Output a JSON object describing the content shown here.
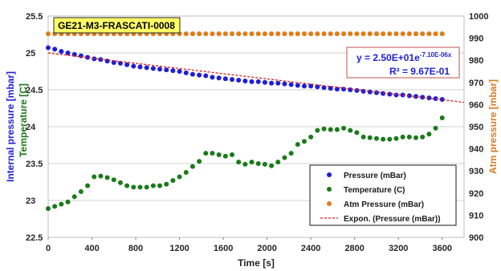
{
  "chart_data": {
    "type": "scatter",
    "title": "GE21-M3-FRASCATI-0008",
    "xlabel": "Time [s]",
    "xlim": [
      0,
      3800
    ],
    "x_ticks": [
      0,
      400,
      800,
      1200,
      1600,
      2000,
      2400,
      2800,
      3200,
      3600
    ],
    "y_left": {
      "labels": [
        "Internal pressure [mbar]",
        "Temperature [C]"
      ],
      "label_colors": [
        "#1f1fd6",
        "#1a7a1a"
      ],
      "lim": [
        22.5,
        25.5
      ],
      "ticks": [
        "22.5",
        "23",
        "23.5",
        "24",
        "24.5",
        "25",
        "25.5"
      ]
    },
    "y_right": {
      "label": "Atm pressure [mbar]",
      "label_color": "#e07b1a",
      "lim": [
        900,
        1000
      ],
      "ticks": [
        "900",
        "910",
        "920",
        "930",
        "940",
        "950",
        "960",
        "970",
        "980",
        "990",
        "1000"
      ]
    },
    "grid": "horizontal",
    "legend_position": "bottom-right",
    "series": [
      {
        "name": "Pressure (mBar)",
        "color": "#1f1fd6",
        "marker": "circle",
        "axis": "left",
        "x": [
          0,
          60,
          120,
          180,
          240,
          300,
          360,
          420,
          480,
          540,
          600,
          660,
          720,
          780,
          840,
          900,
          960,
          1020,
          1080,
          1140,
          1200,
          1260,
          1320,
          1380,
          1440,
          1500,
          1560,
          1620,
          1680,
          1740,
          1800,
          1860,
          1920,
          1980,
          2040,
          2100,
          2160,
          2220,
          2280,
          2340,
          2400,
          2460,
          2520,
          2580,
          2640,
          2700,
          2760,
          2820,
          2880,
          2940,
          3000,
          3060,
          3120,
          3180,
          3240,
          3300,
          3360,
          3420,
          3480,
          3540,
          3600
        ],
        "y": [
          25.07,
          25.05,
          25.02,
          25.0,
          24.98,
          24.96,
          24.94,
          24.92,
          24.91,
          24.89,
          24.87,
          24.86,
          24.84,
          24.82,
          24.81,
          24.8,
          24.79,
          24.78,
          24.77,
          24.76,
          24.75,
          24.73,
          24.71,
          24.7,
          24.69,
          24.67,
          24.66,
          24.65,
          24.64,
          24.63,
          24.62,
          24.61,
          24.61,
          24.6,
          24.59,
          24.59,
          24.58,
          24.57,
          24.56,
          24.55,
          24.55,
          24.54,
          24.53,
          24.52,
          24.51,
          24.51,
          24.5,
          24.49,
          24.48,
          24.47,
          24.46,
          24.45,
          24.44,
          24.43,
          24.43,
          24.42,
          24.41,
          24.4,
          24.39,
          24.38,
          24.37
        ]
      },
      {
        "name": "Temperature (C)",
        "color": "#1a7a1a",
        "marker": "circle",
        "axis": "left",
        "x": [
          0,
          60,
          120,
          180,
          240,
          300,
          360,
          420,
          480,
          540,
          600,
          660,
          720,
          780,
          840,
          900,
          960,
          1020,
          1080,
          1140,
          1200,
          1260,
          1320,
          1380,
          1440,
          1500,
          1560,
          1620,
          1680,
          1740,
          1800,
          1860,
          1920,
          1980,
          2040,
          2100,
          2160,
          2220,
          2280,
          2340,
          2400,
          2460,
          2520,
          2580,
          2640,
          2700,
          2760,
          2820,
          2880,
          2940,
          3000,
          3060,
          3120,
          3180,
          3240,
          3300,
          3360,
          3420,
          3480,
          3540,
          3600
        ],
        "y": [
          22.89,
          22.92,
          22.95,
          22.98,
          23.05,
          23.12,
          23.2,
          23.32,
          23.33,
          23.31,
          23.28,
          23.24,
          23.2,
          23.18,
          23.18,
          23.18,
          23.2,
          23.2,
          23.22,
          23.27,
          23.32,
          23.38,
          23.46,
          23.53,
          23.64,
          23.64,
          23.62,
          23.6,
          23.62,
          23.52,
          23.49,
          23.52,
          23.5,
          23.49,
          23.47,
          23.52,
          23.58,
          23.64,
          23.76,
          23.8,
          23.86,
          23.95,
          23.97,
          23.96,
          23.96,
          23.98,
          23.95,
          23.92,
          23.86,
          23.85,
          23.84,
          23.83,
          23.83,
          23.84,
          23.86,
          23.86,
          23.85,
          23.86,
          23.9,
          23.98,
          24.12
        ]
      },
      {
        "name": "Atm Pressure (mBar)",
        "color": "#e07b1a",
        "marker": "circle",
        "axis": "right",
        "x": [
          0,
          60,
          120,
          180,
          240,
          300,
          360,
          420,
          480,
          540,
          600,
          660,
          720,
          780,
          840,
          900,
          960,
          1020,
          1080,
          1140,
          1200,
          1260,
          1320,
          1380,
          1440,
          1500,
          1560,
          1620,
          1680,
          1740,
          1800,
          1860,
          1920,
          1980,
          2040,
          2100,
          2160,
          2220,
          2280,
          2340,
          2400,
          2460,
          2520,
          2580,
          2640,
          2700,
          2760,
          2820,
          2880,
          2940,
          3000,
          3060,
          3120,
          3180,
          3240,
          3300,
          3360,
          3420,
          3480,
          3540,
          3600
        ],
        "y": [
          992,
          992,
          992,
          992,
          992,
          992,
          992,
          992,
          992,
          992,
          992,
          992,
          992,
          992,
          992,
          992,
          992,
          992,
          992,
          992,
          992,
          992,
          992,
          992,
          992,
          992,
          992,
          992,
          992,
          992,
          992,
          992,
          992,
          992,
          992,
          992,
          992,
          992,
          992,
          992,
          992,
          992,
          992,
          992,
          992,
          992,
          992,
          992,
          992,
          992,
          992,
          992,
          992,
          992,
          992,
          992,
          992,
          992,
          992,
          992,
          992
        ]
      },
      {
        "name": "Expon. (Pressure (mBar))",
        "color": "#d62020",
        "marker": "dashed-line",
        "axis": "left",
        "x": [
          0,
          3800
        ],
        "y": [
          25.0,
          24.33
        ]
      }
    ],
    "annotation": {
      "equation_prefix": "y = 2.50E+01e",
      "equation_exponent": "-7.10E-06x",
      "r_squared": "R² = 9.67E-01"
    }
  }
}
